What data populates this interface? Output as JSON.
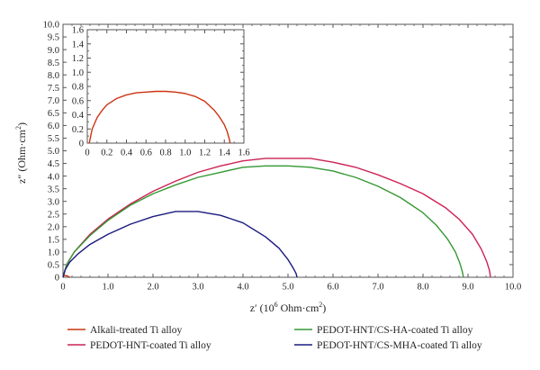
{
  "chart_data": {
    "type": "line",
    "xlabel_main": "z′ (10",
    "xlabel_exp": "6",
    "xlabel_tail": " Ohm·cm",
    "xlabel_sq": "2",
    "xlabel_close": ")",
    "ylabel_main": "z″ (Ohm·cm",
    "ylabel_sq": "2",
    "ylabel_close": ")",
    "xlim": [
      0,
      10
    ],
    "ylim": [
      0,
      10
    ],
    "xticks": [
      "0",
      "1.0",
      "2.0",
      "3.0",
      "4.0",
      "5.0",
      "6.0",
      "7.0",
      "8.0",
      "9.0",
      "10.0"
    ],
    "yticks": [
      "0",
      "0.5",
      "1.0",
      "1.5",
      "2.0",
      "2.5",
      "3.0",
      "3.5",
      "4.0",
      "4.5",
      "5.0",
      "5.5",
      "6.0",
      "6.5",
      "7.0",
      "7.5",
      "8.0",
      "8.5",
      "9.0",
      "9.5",
      "10.0"
    ],
    "legend_position": "bottom",
    "series": [
      {
        "name": "Alkali-treated Ti alloy",
        "color": "#cc3311",
        "x": [
          0,
          0.01,
          0.03,
          0.06,
          0.1,
          0.13,
          0.15
        ],
        "y": [
          0,
          0.05,
          0.07,
          0.07,
          0.05,
          0.02,
          0
        ]
      },
      {
        "name": "PEDOT-HNT-coated Ti alloy",
        "color": "#cc2255",
        "x": [
          0,
          0.08,
          0.25,
          0.6,
          1.0,
          1.5,
          2.0,
          2.5,
          3.0,
          3.5,
          4.0,
          4.5,
          5.0,
          5.5,
          6.0,
          6.5,
          7.0,
          7.5,
          8.0,
          8.5,
          8.8,
          9.1,
          9.3,
          9.42,
          9.48,
          9.5
        ],
        "y": [
          0,
          0.5,
          1.0,
          1.7,
          2.3,
          2.9,
          3.4,
          3.8,
          4.15,
          4.4,
          4.6,
          4.7,
          4.7,
          4.7,
          4.55,
          4.35,
          4.05,
          3.7,
          3.3,
          2.75,
          2.3,
          1.7,
          1.1,
          0.6,
          0.25,
          0
        ]
      },
      {
        "name": "PEDOT-HNT/CS-HA-coated Ti alloy",
        "color": "#339933",
        "x": [
          0,
          0.08,
          0.25,
          0.6,
          1.0,
          1.5,
          2.0,
          2.5,
          3.0,
          3.5,
          4.0,
          4.5,
          5.0,
          5.5,
          6.0,
          6.5,
          7.0,
          7.5,
          8.0,
          8.3,
          8.55,
          8.72,
          8.82,
          8.87,
          8.9
        ],
        "y": [
          0,
          0.5,
          1.0,
          1.65,
          2.25,
          2.85,
          3.3,
          3.65,
          3.95,
          4.15,
          4.35,
          4.4,
          4.4,
          4.35,
          4.2,
          3.95,
          3.6,
          3.15,
          2.55,
          2.05,
          1.5,
          1.0,
          0.55,
          0.25,
          0
        ]
      },
      {
        "name": "PEDOT-HNT/CS-MHA-coated Ti alloy",
        "color": "#1a1a80",
        "x": [
          0,
          0.05,
          0.15,
          0.35,
          0.6,
          1.0,
          1.5,
          2.0,
          2.5,
          3.0,
          3.5,
          4.0,
          4.5,
          4.8,
          5.0,
          5.12,
          5.18,
          5.2
        ],
        "y": [
          0,
          0.3,
          0.6,
          0.95,
          1.3,
          1.7,
          2.1,
          2.4,
          2.6,
          2.6,
          2.45,
          2.15,
          1.6,
          1.15,
          0.7,
          0.35,
          0.15,
          0
        ]
      }
    ],
    "inset": {
      "xlim": [
        0,
        1.6
      ],
      "ylim": [
        0,
        1.6
      ],
      "xticks": [
        "0",
        "0.2",
        "0.4",
        "0.6",
        "0.8",
        "1.0",
        "1.2",
        "1.4",
        "1.6"
      ],
      "yticks": [
        "0",
        "0.2",
        "0.4",
        "0.6",
        "0.8",
        "1.0",
        "1.2",
        "1.4",
        "1.6"
      ],
      "series": [
        {
          "name": "Alkali-treated Ti alloy",
          "color": "#cc3311",
          "x": [
            0.02,
            0.05,
            0.1,
            0.15,
            0.2,
            0.3,
            0.4,
            0.5,
            0.6,
            0.7,
            0.8,
            0.9,
            1.0,
            1.1,
            1.2,
            1.3,
            1.35,
            1.4,
            1.43,
            1.45,
            1.46
          ],
          "y": [
            0,
            0.2,
            0.36,
            0.46,
            0.54,
            0.63,
            0.68,
            0.71,
            0.72,
            0.73,
            0.73,
            0.72,
            0.7,
            0.66,
            0.59,
            0.46,
            0.37,
            0.26,
            0.16,
            0.06,
            0
          ]
        }
      ]
    }
  }
}
